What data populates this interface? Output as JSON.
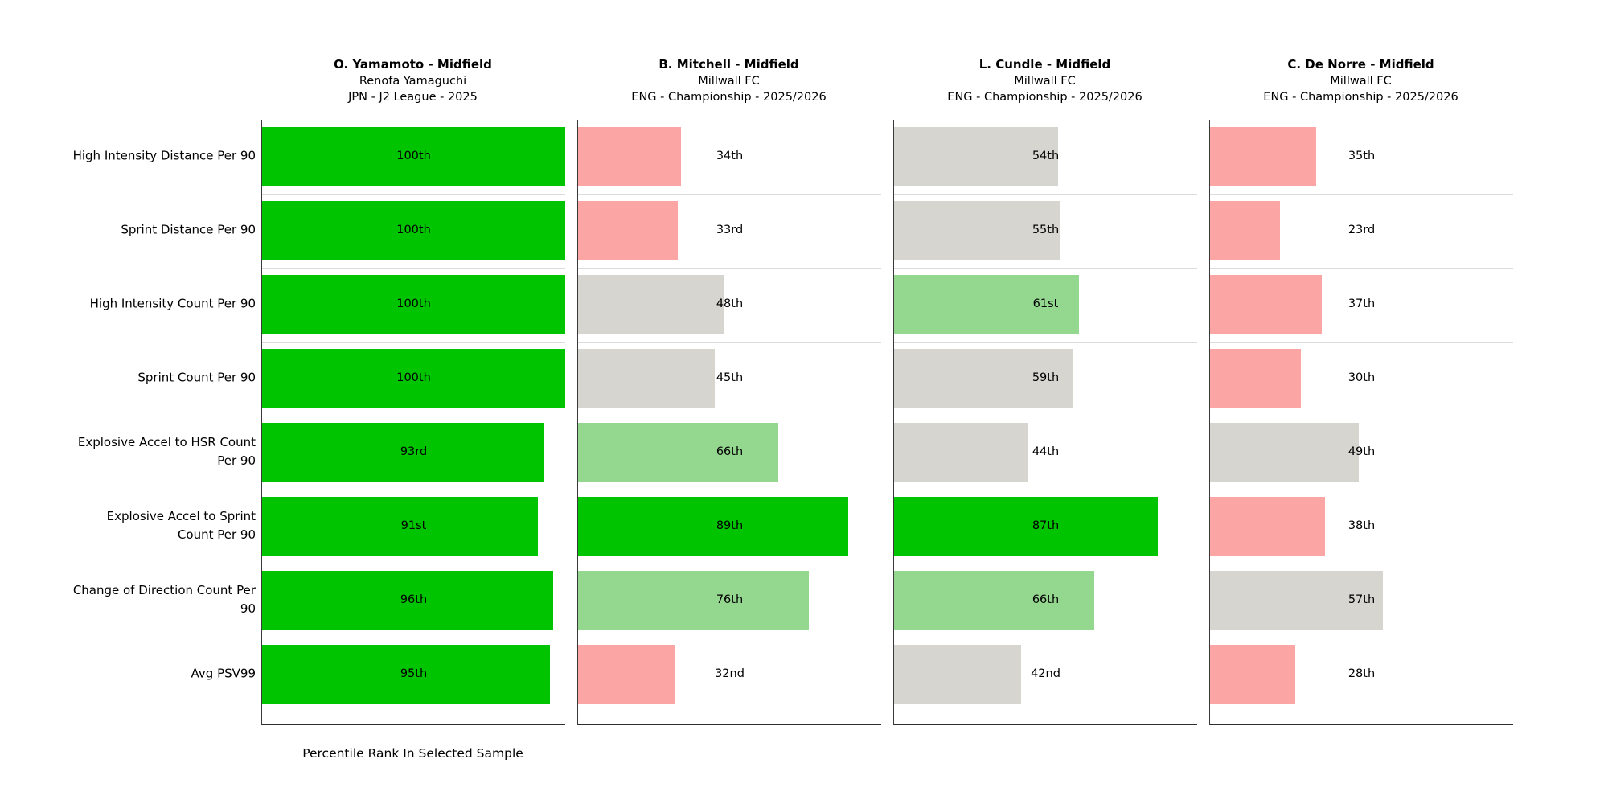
{
  "chart_data": {
    "type": "bar",
    "orientation": "horizontal",
    "xlabel": "Percentile Rank In Selected Sample",
    "xlim": [
      0,
      100
    ],
    "grid": false,
    "metrics": [
      [
        "High Intensity Distance Per 90"
      ],
      [
        "Sprint Distance Per 90"
      ],
      [
        "High Intensity Count Per 90"
      ],
      [
        "Sprint Count Per 90"
      ],
      [
        "Explosive Accel to HSR Count",
        "Per 90"
      ],
      [
        "Explosive Accel to Sprint",
        "Count Per 90"
      ],
      [
        "Change of Direction Count Per",
        "90"
      ],
      [
        "Avg PSV99"
      ]
    ],
    "players": [
      {
        "name": "O. Yamamoto - Midfield",
        "team": "Renofa Yamaguchi",
        "league": "JPN - J2 League - 2025",
        "values": [
          100,
          100,
          100,
          100,
          93,
          91,
          96,
          95
        ],
        "value_labels": [
          "100th",
          "100th",
          "100th",
          "100th",
          "93rd",
          "91st",
          "96th",
          "95th"
        ]
      },
      {
        "name": "B. Mitchell - Midfield",
        "team": "Millwall FC",
        "league": "ENG - Championship - 2025/2026",
        "values": [
          34,
          33,
          48,
          45,
          66,
          89,
          76,
          32
        ],
        "value_labels": [
          "34th",
          "33rd",
          "48th",
          "45th",
          "66th",
          "89th",
          "76th",
          "32nd"
        ]
      },
      {
        "name": "L. Cundle - Midfield",
        "team": "Millwall FC",
        "league": "ENG - Championship - 2025/2026",
        "values": [
          54,
          55,
          61,
          59,
          44,
          87,
          66,
          42
        ],
        "value_labels": [
          "54th",
          "55th",
          "61st",
          "59th",
          "44th",
          "87th",
          "66th",
          "42nd"
        ]
      },
      {
        "name": "C. De Norre - Midfield",
        "team": "Millwall FC",
        "league": "ENG - Championship - 2025/2026",
        "values": [
          35,
          23,
          37,
          30,
          49,
          38,
          57,
          28
        ],
        "value_labels": [
          "35th",
          "23rd",
          "37th",
          "30th",
          "49th",
          "38th",
          "57th",
          "28th"
        ]
      }
    ],
    "colors": {
      "green": "#00c400",
      "light_green": "#94d78f",
      "gray": "#d7d5d0",
      "pink": "#fba6a4"
    },
    "color_thresholds": {
      "green_min": 80,
      "light_green_min": 60,
      "gray_min": 40
    }
  }
}
